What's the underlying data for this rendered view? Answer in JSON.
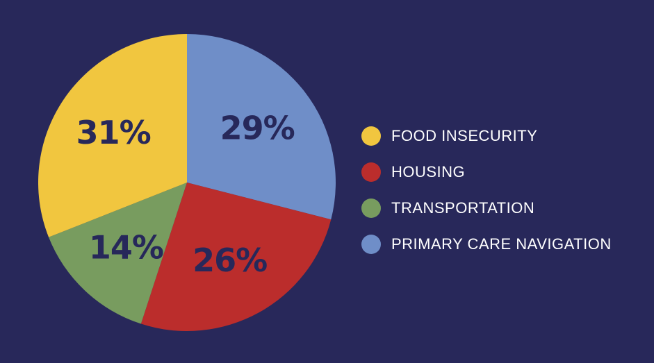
{
  "colors": {
    "background": "#28285a",
    "label_text": "#27285a",
    "legend_text": "#ffffff"
  },
  "chart_data": {
    "type": "pie",
    "title": "",
    "legend_position": "right",
    "start": "top",
    "direction": "clockwise",
    "slices": [
      {
        "name": "PRIMARY CARE NAVIGATION",
        "value": 29,
        "label": "29%",
        "color": "#6f8ec8"
      },
      {
        "name": "HOUSING",
        "value": 26,
        "label": "26%",
        "color": "#bb2d2c"
      },
      {
        "name": "TRANSPORTATION",
        "value": 14,
        "label": "14%",
        "color": "#789c5f"
      },
      {
        "name": "FOOD INSECURITY",
        "value": 31,
        "label": "31%",
        "color": "#f1c63f"
      }
    ],
    "legend": [
      {
        "label": "FOOD INSECURITY",
        "color": "#f1c63f"
      },
      {
        "label": "HOUSING",
        "color": "#bb2d2c"
      },
      {
        "label": "TRANSPORTATION",
        "color": "#789c5f"
      },
      {
        "label": "PRIMARY CARE NAVIGATION",
        "color": "#6f8ec8"
      }
    ]
  }
}
